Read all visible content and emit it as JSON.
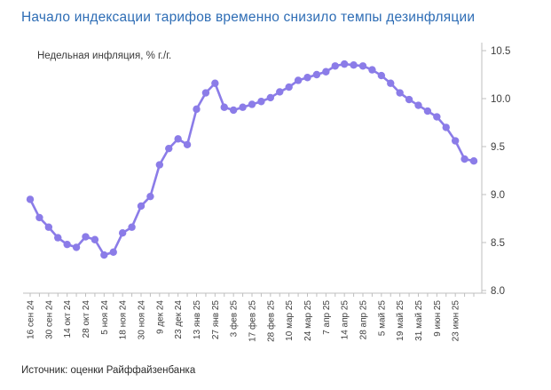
{
  "title": {
    "text": "Начало индексации тарифов временно снизило темпы дезинфляции"
  },
  "legend": {
    "label": "Недельная инфляция, % г./г."
  },
  "source": {
    "text": "Источник: оценки Райффайзенбанка"
  },
  "colors": {
    "title": "#2E6DB5",
    "line": "#8B7CE8",
    "axis": "#BFBFBF",
    "tick_text": "#3D3D3D"
  },
  "chart_data": {
    "type": "line",
    "title": "Начало индексации тарифов временно снизило темпы дезинфляции",
    "series": [
      {
        "name": "Недельная инфляция, % г./г.",
        "values": [
          8.95,
          8.76,
          8.66,
          8.55,
          8.48,
          8.45,
          8.56,
          8.53,
          8.37,
          8.4,
          8.6,
          8.66,
          8.88,
          8.98,
          9.31,
          9.48,
          9.58,
          9.52,
          9.89,
          10.06,
          10.16,
          9.91,
          9.88,
          9.91,
          9.94,
          9.97,
          10.01,
          10.07,
          10.12,
          10.19,
          10.22,
          10.25,
          10.28,
          10.34,
          10.36,
          10.35,
          10.34,
          10.3,
          10.24,
          10.16,
          10.06,
          9.99,
          9.93,
          9.87,
          9.81,
          9.7,
          9.56,
          9.37,
          9.35
        ]
      }
    ],
    "x_tick_labels": [
      "16 сен 24",
      "30 сен 24",
      "14 окт 24",
      "28 окт 24",
      "5 ноя 24",
      "18 ноя 24",
      "30 ноя 24",
      "9 дек 24",
      "23 дек 24",
      "13 янв 25",
      "27 янв 25",
      "3 фев 25",
      "17 фев 25",
      "28 фев 25",
      "10 мар 25",
      "24 мар 25",
      "7 апр 25",
      "14 апр 25",
      "28 апр 25",
      "5 май 25",
      "19 май 25",
      "31 май 25",
      "9 июн 25",
      "23 июн 25"
    ],
    "label_every_nth_point": 2,
    "ylim": [
      8.0,
      10.5
    ],
    "y_ticks": [
      8.0,
      8.5,
      9.0,
      9.5,
      10.0,
      10.5
    ],
    "y_tick_format_decimals": 1,
    "y_axis_position": "right",
    "grid": false,
    "legend_position": "top-left",
    "marker": "circle",
    "line_color": "#8B7CE8",
    "axis_color": "#BFBFBF",
    "tick_text_color": "#3D3D3D"
  }
}
